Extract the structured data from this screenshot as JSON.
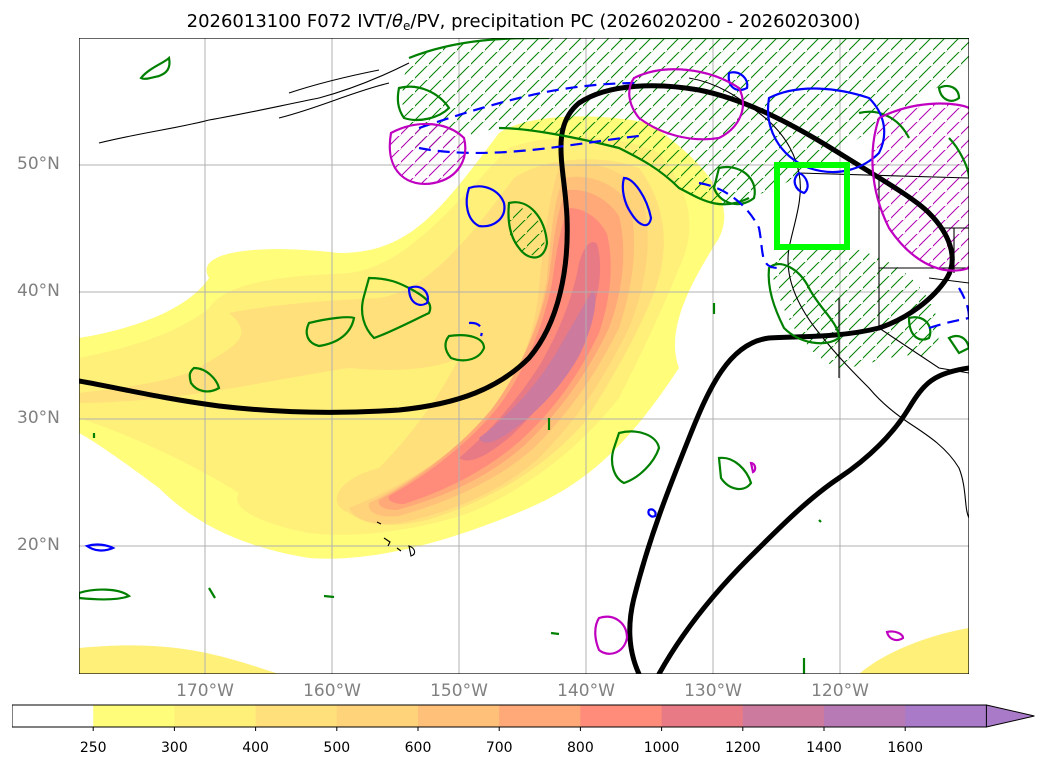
{
  "title": {
    "prefix": "2026013100 F072 IVT/",
    "theta": "θ",
    "theta_sub": "e",
    "suffix": "/PV, precipitation PC (2026020200 - 2026020300)"
  },
  "map": {
    "projection": "lat-lon",
    "region": "North Pacific / western North America",
    "lon_range": [
      "180°",
      "110°W"
    ],
    "lat_range": [
      "10°N",
      "60°N"
    ],
    "gridlines": true,
    "box_color": "#00ff00",
    "colors": {
      "zero_line": "#000000",
      "precip_pc_positive": "#008000",
      "precip_pc_negative": "#0000ff",
      "pv": "#c000c0",
      "coastline": "#000000"
    }
  },
  "axes": {
    "lat_labels": [
      "50°N",
      "40°N",
      "30°N",
      "20°N"
    ],
    "lon_labels": [
      "170°W",
      "160°W",
      "150°W",
      "140°W",
      "130°W",
      "120°W"
    ]
  },
  "colorbar": {
    "levels": [
      "250",
      "300",
      "400",
      "500",
      "600",
      "700",
      "800",
      "1000",
      "1200",
      "1400",
      "1600"
    ],
    "colors": [
      "#ffffff",
      "#fffd7a",
      "#fff07a",
      "#ffe07a",
      "#ffd37a",
      "#ffc17a",
      "#ffa878",
      "#ff8b7a",
      "#e87a85",
      "#cc7a9e",
      "#b87ab5",
      "#a87ac8"
    ],
    "extend": "max"
  }
}
